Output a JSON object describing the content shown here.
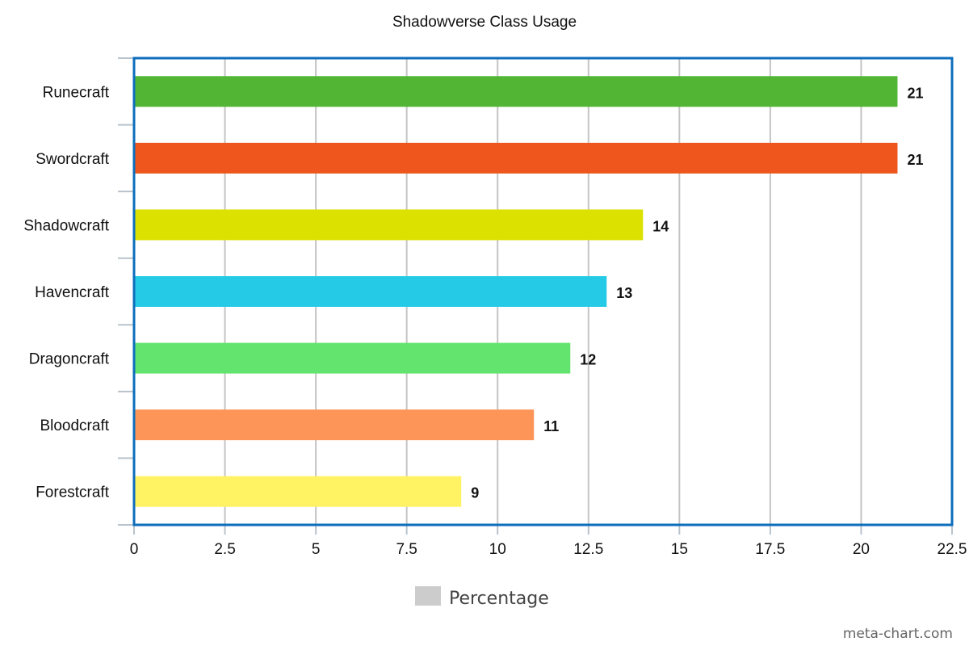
{
  "chart_data": {
    "type": "bar",
    "orientation": "horizontal",
    "title": "Shadowverse Class Usage",
    "categories": [
      "Runecraft",
      "Swordcraft",
      "Shadowcraft",
      "Havencraft",
      "Dragoncraft",
      "Bloodcraft",
      "Forestcraft"
    ],
    "series": [
      {
        "name": "Percentage",
        "values": [
          21,
          21,
          14,
          13,
          12,
          11,
          9
        ],
        "data_labels": [
          "21",
          "21",
          "14",
          "13",
          "12",
          "11",
          "9"
        ],
        "colors": [
          "#52b534",
          "#ee561e",
          "#dce100",
          "#25cbe6",
          "#62e46f",
          "#fe9558",
          "#fff263"
        ]
      }
    ],
    "xlim": [
      0,
      22.5
    ],
    "x_ticks": [
      0,
      2.5,
      5,
      7.5,
      10,
      12.5,
      15,
      17.5,
      20,
      22.5
    ],
    "x_tick_labels": [
      "0",
      "2.5",
      "5",
      "7.5",
      "10",
      "12.5",
      "15",
      "17.5",
      "20",
      "22.5"
    ],
    "grid": true,
    "legend": {
      "position": "bottom",
      "items": [
        {
          "label": "Percentage",
          "color": "#cccccc"
        }
      ]
    },
    "plot_border_color": "#0d6ebc"
  },
  "footer": {
    "watermark": "meta-chart.com"
  }
}
